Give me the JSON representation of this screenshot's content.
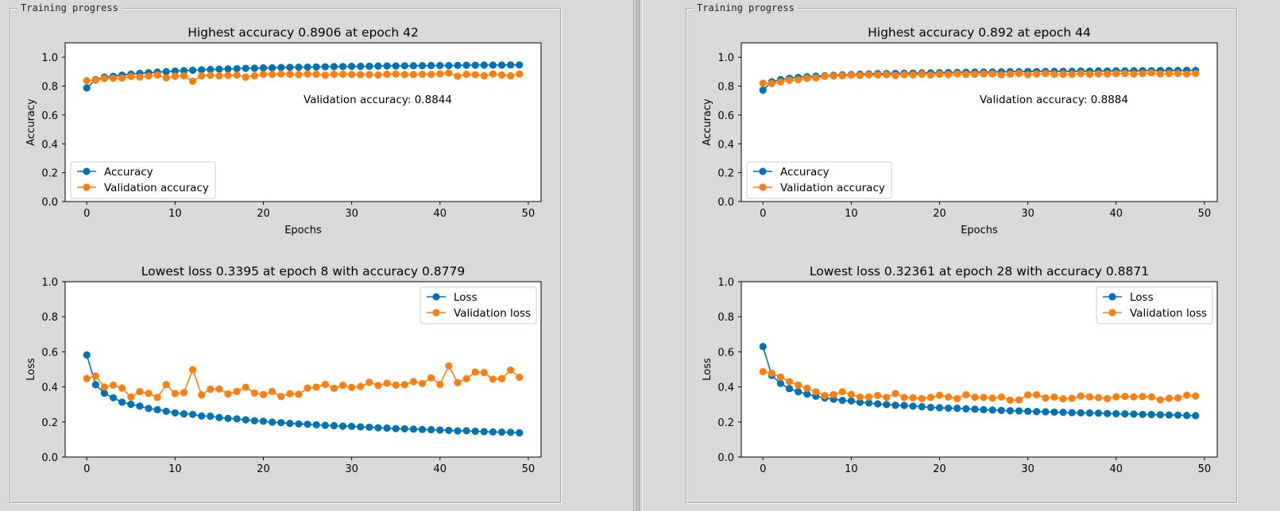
{
  "panels": [
    {
      "group_title": "Training progress",
      "charts": [
        {
          "type": "line",
          "title": "Highest accuracy 0.8906 at epoch 42",
          "xlabel": "Epochs",
          "ylabel": "Accuracy",
          "xlim": [
            -2.45,
            51.45
          ],
          "ylim": [
            0,
            1.1
          ],
          "xticks": [
            0,
            10,
            20,
            30,
            40,
            50
          ],
          "yticks": [
            0.0,
            0.2,
            0.4,
            0.6,
            0.8,
            1.0
          ],
          "legend_position": "lower-left",
          "annotation": "Validation accuracy: 0.8844",
          "series": [
            {
              "name": "Accuracy",
              "color": "#0173b2",
              "values": [
                0.787,
                0.845,
                0.862,
                0.868,
                0.876,
                0.883,
                0.889,
                0.893,
                0.897,
                0.9,
                0.904,
                0.907,
                0.91,
                0.913,
                0.915,
                0.917,
                0.919,
                0.921,
                0.923,
                0.924,
                0.926,
                0.927,
                0.929,
                0.93,
                0.931,
                0.932,
                0.933,
                0.934,
                0.935,
                0.936,
                0.937,
                0.937,
                0.938,
                0.939,
                0.94,
                0.94,
                0.941,
                0.941,
                0.942,
                0.943,
                0.943,
                0.943,
                0.944,
                0.945,
                0.945,
                0.946,
                0.946,
                0.946,
                0.947,
                0.947
              ]
            },
            {
              "name": "Validation accuracy",
              "color": "#ff7f0e",
              "values": [
                0.838,
                0.841,
                0.853,
                0.855,
                0.856,
                0.867,
                0.863,
                0.87,
                0.877,
                0.857,
                0.869,
                0.871,
                0.834,
                0.871,
                0.875,
                0.872,
                0.874,
                0.877,
                0.862,
                0.872,
                0.882,
                0.882,
                0.884,
                0.883,
                0.88,
                0.884,
                0.883,
                0.876,
                0.882,
                0.883,
                0.881,
                0.88,
                0.88,
                0.877,
                0.883,
                0.884,
                0.88,
                0.881,
                0.882,
                0.881,
                0.885,
                0.891,
                0.869,
                0.882,
                0.879,
                0.872,
                0.884,
                0.877,
                0.872,
                0.884
              ]
            }
          ]
        },
        {
          "type": "line",
          "title": "Lowest loss 0.3395 at epoch 8 with accuracy 0.8779",
          "xlabel": "",
          "ylabel": "Loss",
          "xlim": [
            -2.45,
            51.45
          ],
          "ylim": [
            0,
            1.0
          ],
          "xticks": [
            0,
            10,
            20,
            30,
            40,
            50
          ],
          "yticks": [
            0.0,
            0.2,
            0.4,
            0.6,
            0.8,
            1.0
          ],
          "legend_position": "upper-right",
          "annotation": "",
          "series": [
            {
              "name": "Loss",
              "color": "#0173b2",
              "values": [
                0.582,
                0.413,
                0.364,
                0.338,
                0.313,
                0.301,
                0.29,
                0.277,
                0.27,
                0.261,
                0.252,
                0.246,
                0.243,
                0.234,
                0.233,
                0.225,
                0.22,
                0.218,
                0.212,
                0.207,
                0.204,
                0.199,
                0.196,
                0.192,
                0.189,
                0.187,
                0.184,
                0.181,
                0.179,
                0.176,
                0.175,
                0.172,
                0.17,
                0.167,
                0.165,
                0.162,
                0.161,
                0.159,
                0.157,
                0.156,
                0.154,
                0.152,
                0.149,
                0.15,
                0.147,
                0.145,
                0.143,
                0.142,
                0.141,
                0.138
              ]
            },
            {
              "name": "Validation loss",
              "color": "#ff7f0e",
              "values": [
                0.448,
                0.462,
                0.399,
                0.41,
                0.393,
                0.342,
                0.373,
                0.363,
                0.34,
                0.413,
                0.362,
                0.367,
                0.498,
                0.354,
                0.387,
                0.388,
                0.36,
                0.374,
                0.398,
                0.365,
                0.356,
                0.374,
                0.345,
                0.361,
                0.358,
                0.393,
                0.399,
                0.414,
                0.392,
                0.409,
                0.397,
                0.402,
                0.426,
                0.408,
                0.421,
                0.41,
                0.413,
                0.43,
                0.419,
                0.452,
                0.414,
                0.52,
                0.424,
                0.447,
                0.484,
                0.482,
                0.444,
                0.447,
                0.496,
                0.455
              ]
            }
          ]
        }
      ]
    },
    {
      "group_title": "Training progress",
      "charts": [
        {
          "type": "line",
          "title": "Highest accuracy 0.892 at epoch 44",
          "xlabel": "Epochs",
          "ylabel": "Accuracy",
          "xlim": [
            -2.45,
            51.45
          ],
          "ylim": [
            0,
            1.1
          ],
          "xticks": [
            0,
            10,
            20,
            30,
            40,
            50
          ],
          "yticks": [
            0.0,
            0.2,
            0.4,
            0.6,
            0.8,
            1.0
          ],
          "legend_position": "lower-left",
          "annotation": "Validation accuracy: 0.8884",
          "series": [
            {
              "name": "Accuracy",
              "color": "#0173b2",
              "values": [
                0.772,
                0.83,
                0.845,
                0.854,
                0.86,
                0.865,
                0.869,
                0.872,
                0.875,
                0.878,
                0.88,
                0.882,
                0.884,
                0.886,
                0.887,
                0.888,
                0.889,
                0.89,
                0.891,
                0.892,
                0.893,
                0.894,
                0.895,
                0.896,
                0.897,
                0.897,
                0.898,
                0.899,
                0.9,
                0.9,
                0.901,
                0.901,
                0.902,
                0.902,
                0.903,
                0.903,
                0.904,
                0.904,
                0.905,
                0.905,
                0.906,
                0.906,
                0.906,
                0.907,
                0.907,
                0.908,
                0.908,
                0.908,
                0.909,
                0.909
              ]
            },
            {
              "name": "Validation accuracy",
              "color": "#ff7f0e",
              "values": [
                0.82,
                0.818,
                0.83,
                0.84,
                0.844,
                0.854,
                0.857,
                0.868,
                0.87,
                0.872,
                0.876,
                0.874,
                0.878,
                0.877,
                0.879,
                0.874,
                0.88,
                0.878,
                0.882,
                0.877,
                0.883,
                0.88,
                0.885,
                0.882,
                0.883,
                0.884,
                0.885,
                0.878,
                0.883,
                0.887,
                0.879,
                0.884,
                0.887,
                0.882,
                0.883,
                0.882,
                0.887,
                0.882,
                0.885,
                0.884,
                0.886,
                0.887,
                0.884,
                0.887,
                0.892,
                0.885,
                0.887,
                0.888,
                0.884,
                0.888
              ]
            }
          ]
        },
        {
          "type": "line",
          "title": "Lowest loss 0.32361 at epoch 28 with accuracy 0.8871",
          "xlabel": "",
          "ylabel": "Loss",
          "xlim": [
            -2.45,
            51.45
          ],
          "ylim": [
            0,
            1.0
          ],
          "xticks": [
            0,
            10,
            20,
            30,
            40,
            50
          ],
          "yticks": [
            0.0,
            0.2,
            0.4,
            0.6,
            0.8,
            1.0
          ],
          "legend_position": "upper-right",
          "annotation": "",
          "series": [
            {
              "name": "Loss",
              "color": "#0173b2",
              "values": [
                0.63,
                0.465,
                0.42,
                0.39,
                0.372,
                0.359,
                0.347,
                0.337,
                0.33,
                0.323,
                0.32,
                0.312,
                0.308,
                0.303,
                0.299,
                0.295,
                0.294,
                0.29,
                0.287,
                0.283,
                0.281,
                0.279,
                0.278,
                0.275,
                0.273,
                0.27,
                0.268,
                0.266,
                0.264,
                0.263,
                0.261,
                0.259,
                0.258,
                0.256,
                0.255,
                0.253,
                0.252,
                0.251,
                0.25,
                0.248,
                0.247,
                0.246,
                0.245,
                0.243,
                0.242,
                0.241,
                0.24,
                0.239,
                0.237,
                0.236
              ]
            },
            {
              "name": "Validation loss",
              "color": "#ff7f0e",
              "values": [
                0.487,
                0.478,
                0.456,
                0.43,
                0.41,
                0.392,
                0.372,
                0.35,
                0.356,
                0.372,
                0.357,
                0.342,
                0.342,
                0.351,
                0.34,
                0.362,
                0.34,
                0.338,
                0.333,
                0.34,
                0.352,
                0.342,
                0.333,
                0.355,
                0.341,
                0.34,
                0.336,
                0.343,
                0.324,
                0.325,
                0.354,
                0.355,
                0.337,
                0.342,
                0.332,
                0.335,
                0.348,
                0.343,
                0.339,
                0.333,
                0.344,
                0.346,
                0.343,
                0.345,
                0.343,
                0.326,
                0.335,
                0.337,
                0.353,
                0.348
              ]
            }
          ]
        }
      ]
    }
  ]
}
